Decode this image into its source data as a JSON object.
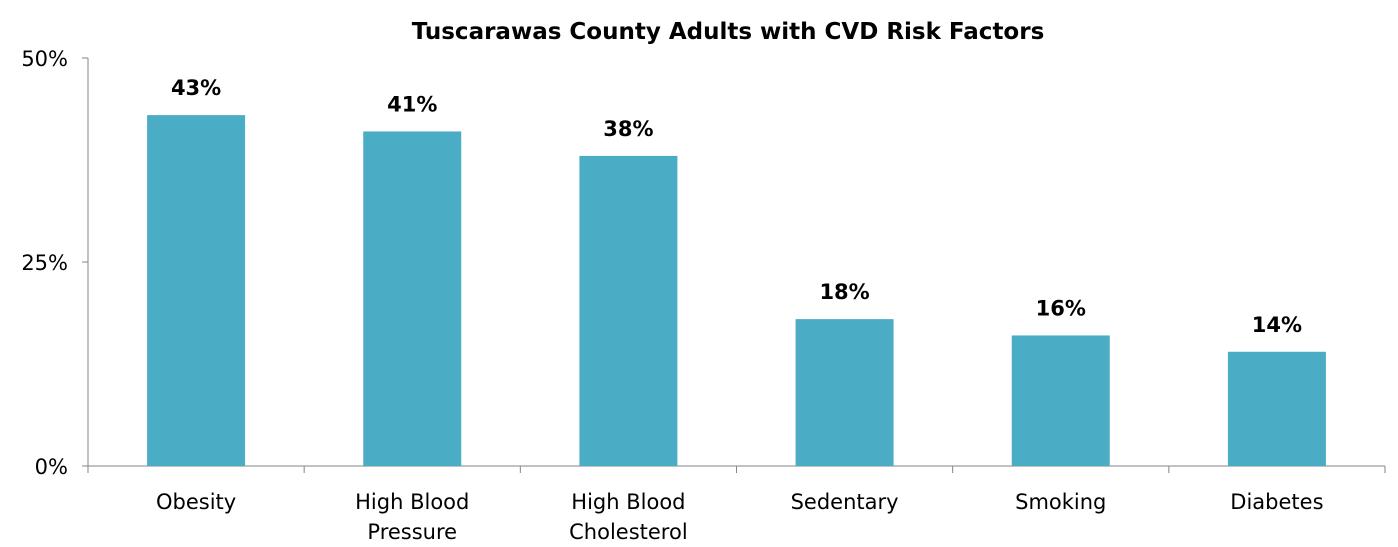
{
  "chart_data": {
    "type": "bar",
    "title": "Tuscarawas County Adults with CVD Risk Factors",
    "categories": [
      [
        "Obesity"
      ],
      [
        "High Blood",
        "Pressure"
      ],
      [
        "High Blood",
        "Cholesterol"
      ],
      [
        "Sedentary"
      ],
      [
        "Smoking"
      ],
      [
        "Diabetes"
      ]
    ],
    "values": [
      43,
      41,
      38,
      18,
      16,
      14
    ],
    "data_labels": [
      "43%",
      "41%",
      "38%",
      "18%",
      "16%",
      "14%"
    ],
    "y_ticks": [
      {
        "value": 0,
        "label": "0%"
      },
      {
        "value": 25,
        "label": "25%"
      },
      {
        "value": 50,
        "label": "50%"
      }
    ],
    "ylim": [
      0,
      50
    ],
    "xlabel": "",
    "ylabel": "",
    "grid": false,
    "legend": "none",
    "bar_color": "#4BACC6",
    "axis_color": "#868686",
    "text_color": "#000000"
  }
}
